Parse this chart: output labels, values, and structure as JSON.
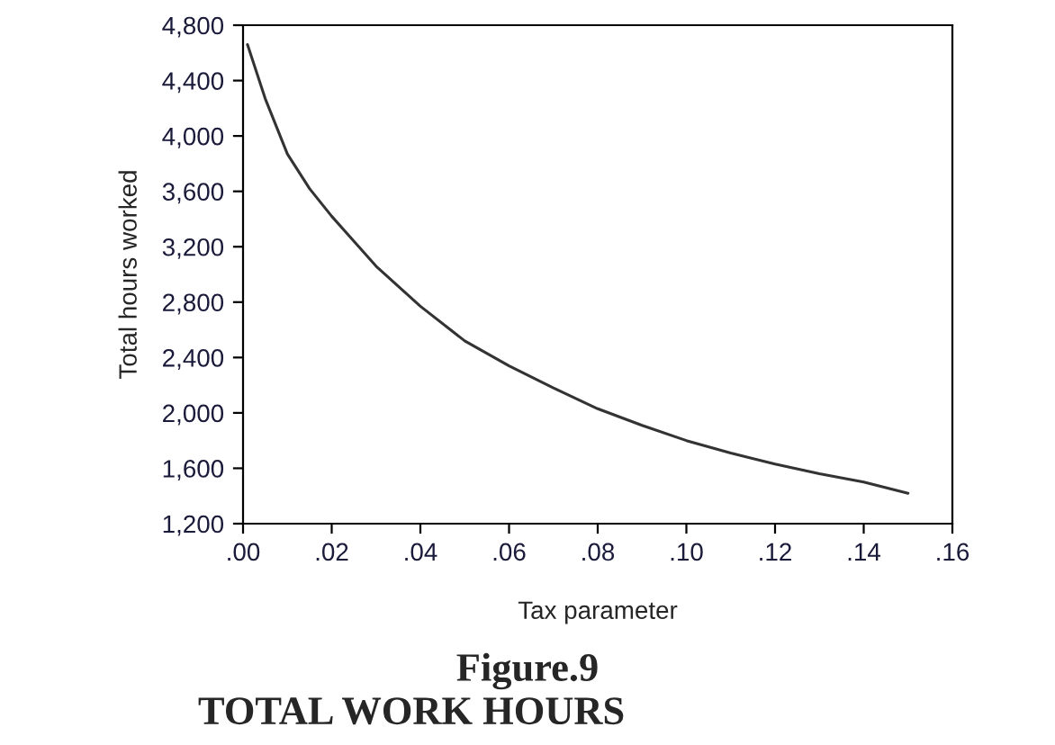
{
  "chart_data": {
    "type": "line",
    "xlabel": "Tax parameter",
    "ylabel": "Total hours worked",
    "annotations": [
      "Figure.9",
      "TOTAL WORK HOURS"
    ],
    "series": [
      {
        "color": "#333333",
        "x": [
          0.001,
          0.005,
          0.01,
          0.015,
          0.02,
          0.03,
          0.04,
          0.05,
          0.06,
          0.07,
          0.08,
          0.09,
          0.1,
          0.11,
          0.12,
          0.13,
          0.14,
          0.15
        ],
        "values": [
          4660,
          4270,
          3870,
          3620,
          3420,
          3060,
          2770,
          2520,
          2340,
          2180,
          2030,
          1910,
          1800,
          1710,
          1630,
          1560,
          1500,
          1420
        ]
      }
    ],
    "xlim": [
      0,
      0.16
    ],
    "xticks": [
      {
        "value": 0,
        "label": ".00"
      },
      {
        "value": 0.02,
        "label": ".02"
      },
      {
        "value": 0.04,
        "label": ".04"
      },
      {
        "value": 0.06,
        "label": ".06"
      },
      {
        "value": 0.08,
        "label": ".08"
      },
      {
        "value": 0.1,
        "label": ".10"
      },
      {
        "value": 0.12,
        "label": ".12"
      },
      {
        "value": 0.14,
        "label": ".14"
      },
      {
        "value": 0.16,
        "label": ".16"
      }
    ],
    "ylim": [
      1200,
      4800
    ],
    "yticks": [
      {
        "value": 1200,
        "label": "1,200"
      },
      {
        "value": 1600,
        "label": "1,600"
      },
      {
        "value": 2000,
        "label": "2,000"
      },
      {
        "value": 2400,
        "label": "2,400"
      },
      {
        "value": 2800,
        "label": "2,800"
      },
      {
        "value": 3200,
        "label": "3,200"
      },
      {
        "value": 3600,
        "label": "3,600"
      },
      {
        "value": 4000,
        "label": "4,000"
      },
      {
        "value": 4400,
        "label": "4,400"
      },
      {
        "value": 4800,
        "label": "4,800"
      }
    ],
    "grid": false,
    "legend": false
  }
}
